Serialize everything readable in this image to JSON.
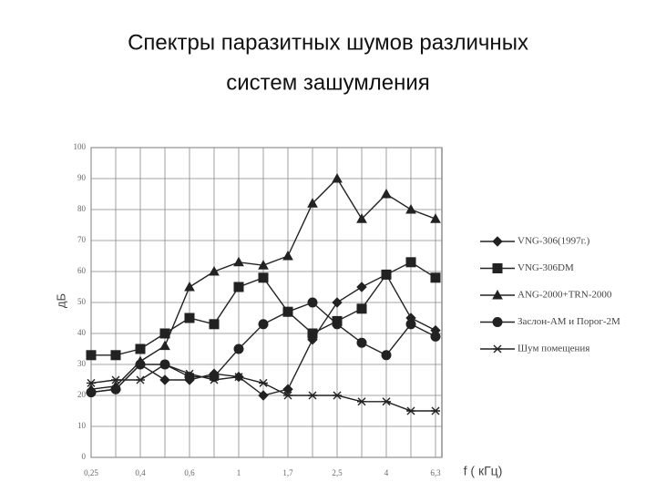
{
  "chart_data": {
    "type": "line",
    "title": [
      "Спектры паразитных шумов различных",
      "систем зашумления"
    ],
    "y_label": "дБ",
    "x_label": "f ( кГц)",
    "categories": [
      "0,25",
      null,
      "0,4",
      null,
      "0,6",
      null,
      "1",
      null,
      "1,7",
      null,
      "2,5",
      null,
      "4",
      null,
      "6,3"
    ],
    "ylim": [
      0,
      100
    ],
    "yticks": [
      0,
      10,
      20,
      30,
      40,
      50,
      60,
      70,
      80,
      90,
      100
    ],
    "grid": true,
    "legend": "right",
    "series": [
      {
        "name": "VNG-306(1997г.)",
        "color": "#222222",
        "marker": "diamond",
        "values": [
          21,
          22,
          30,
          25,
          25,
          27,
          26,
          20,
          22,
          38,
          50,
          55,
          59,
          45,
          41
        ]
      },
      {
        "name": "VNG-306DM",
        "color": "#222222",
        "marker": "square",
        "values": [
          33,
          33,
          35,
          40,
          45,
          43,
          55,
          58,
          47,
          40,
          44,
          48,
          59,
          63,
          58
        ]
      },
      {
        "name": "ANG-2000+TRN-2000",
        "color": "#222222",
        "marker": "triangle",
        "values": [
          22,
          23,
          31,
          36,
          55,
          60,
          63,
          62,
          65,
          82,
          90,
          77,
          85,
          80,
          77
        ]
      },
      {
        "name": "Заслон-АМ и Порог-2М",
        "color": "#222222",
        "marker": "circle",
        "values": [
          21,
          22,
          30,
          30,
          26,
          26,
          35,
          43,
          47,
          50,
          43,
          37,
          33,
          43,
          39
        ]
      },
      {
        "name": "Шум помещения",
        "color": "#222222",
        "marker": "star",
        "values": [
          24,
          25,
          25,
          30,
          27,
          25,
          26,
          24,
          20,
          20,
          20,
          18,
          18,
          15,
          15
        ]
      }
    ]
  }
}
